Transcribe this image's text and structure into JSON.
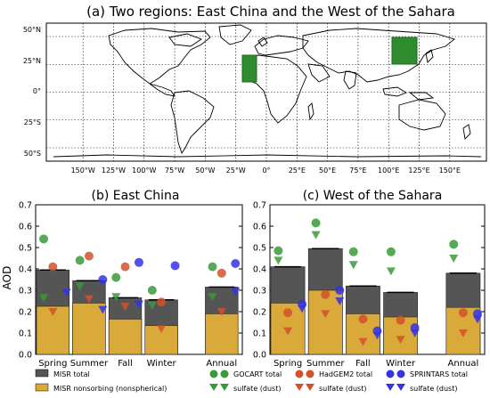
{
  "figure": {
    "title_a": "(a) Two regions: East China and the West of the Sahara",
    "map_lat_labels": [
      "50°N",
      "25°N",
      "0°",
      "25°S",
      "50°S"
    ],
    "map_lon_labels": [
      "150°W",
      "125°W",
      "100°W",
      "75°W",
      "50°W",
      "25°W",
      "0°",
      "25°E",
      "50°E",
      "75°E",
      "100°E",
      "125°E",
      "150°E"
    ],
    "region_color": "#2e8b2e",
    "legend": {
      "misr_total": "MISR total",
      "misr_nonsorb": "MISR nonsorbing (nonspherical)",
      "gocart_total": "GOCART total",
      "gocart_sulfate": "sulfate (dust)",
      "hadgem_total": "HadGEM2 total",
      "hadgem_sulfate": "sulfate (dust)",
      "sprintars_total": "SPRINTARS total",
      "sprintars_sulfate": "sulfate (dust)"
    }
  },
  "colors": {
    "misr_total": "#555555",
    "misr_nonsorb": "#d9a93a",
    "gocart": "#3a9a3a",
    "hadgem": "#d2522c",
    "sprintars": "#3434e6"
  },
  "chart_data": [
    {
      "type": "bar",
      "title": "(b) East China",
      "ylabel": "AOD",
      "ylim": [
        0,
        0.7
      ],
      "yticks": [
        "0.0",
        "0.1",
        "0.2",
        "0.3",
        "0.4",
        "0.5",
        "0.6",
        "0.7"
      ],
      "categories": [
        "Spring",
        "Summer",
        "Fall",
        "Winter",
        "Annual"
      ],
      "misr_total": [
        0.395,
        0.345,
        0.265,
        0.255,
        0.315
      ],
      "misr_nonsorb": [
        0.225,
        0.24,
        0.165,
        0.135,
        0.19
      ],
      "gocart_total": [
        0.54,
        0.44,
        0.36,
        0.3,
        0.41
      ],
      "gocart_sulfate": [
        0.265,
        0.32,
        0.27,
        0.23,
        0.27
      ],
      "hadgem_total": [
        0.41,
        0.46,
        0.41,
        0.245,
        0.38
      ],
      "hadgem_sulfate": [
        0.2,
        0.26,
        0.225,
        0.12,
        0.2
      ],
      "sprintars_total": [
        null,
        0.35,
        0.43,
        0.415,
        0.425
      ],
      "sprintars_sulfate": [
        0.29,
        0.21,
        0.235,
        null,
        0.295
      ]
    },
    {
      "type": "bar",
      "title": "(c) West of the Sahara",
      "ylim": [
        0,
        0.7
      ],
      "yticks": [
        "0.0",
        "0.1",
        "0.2",
        "0.3",
        "0.4",
        "0.5",
        "0.6",
        "0.7"
      ],
      "categories": [
        "Spring",
        "Summer",
        "Fall",
        "Winter",
        "Annual"
      ],
      "misr_total": [
        0.41,
        0.495,
        0.32,
        0.29,
        0.38
      ],
      "misr_nonsorb": [
        0.24,
        0.3,
        0.19,
        0.175,
        0.22
      ],
      "gocart_total": [
        0.485,
        0.615,
        0.48,
        0.48,
        0.515
      ],
      "gocart_sulfate": [
        0.44,
        0.56,
        0.42,
        0.39,
        0.45
      ],
      "hadgem_total": [
        0.195,
        0.28,
        0.165,
        0.16,
        0.195
      ],
      "hadgem_sulfate": [
        0.11,
        0.19,
        0.06,
        0.07,
        0.1
      ],
      "sprintars_total": [
        0.235,
        0.3,
        0.11,
        0.125,
        0.19
      ],
      "sprintars_sulfate": [
        0.215,
        0.25,
        0.09,
        0.1,
        0.165
      ]
    }
  ]
}
